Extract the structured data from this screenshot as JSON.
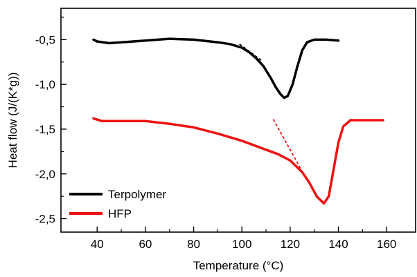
{
  "chart_data": {
    "type": "line",
    "title": "",
    "xlabel": "Temperature (°C)",
    "ylabel": "Heat flow (J/(K*g))",
    "xlim": [
      25,
      172
    ],
    "ylim": [
      -2.65,
      -0.15
    ],
    "x_ticks": [
      40,
      60,
      80,
      100,
      120,
      140,
      160
    ],
    "x_tick_labels": [
      "40",
      "60",
      "80",
      "100",
      "120",
      "140",
      "160"
    ],
    "y_ticks": [
      -0.5,
      -1.0,
      -1.5,
      -2.0,
      -2.5
    ],
    "y_tick_labels": [
      "-0,5",
      "-1,0",
      "-1,5",
      "-2,0",
      "-2,5"
    ],
    "grid": false,
    "legend_position": "bottom-left",
    "series": [
      {
        "name": "Terpolymer",
        "color": "#000000",
        "points": [
          [
            38.5,
            -0.5
          ],
          [
            40,
            -0.52
          ],
          [
            45,
            -0.54
          ],
          [
            50,
            -0.53
          ],
          [
            60,
            -0.51
          ],
          [
            70,
            -0.49
          ],
          [
            80,
            -0.5
          ],
          [
            90,
            -0.53
          ],
          [
            95,
            -0.55
          ],
          [
            100,
            -0.59
          ],
          [
            103,
            -0.64
          ],
          [
            106,
            -0.71
          ],
          [
            109,
            -0.8
          ],
          [
            112,
            -0.93
          ],
          [
            114,
            -1.03
          ],
          [
            116,
            -1.11
          ],
          [
            117.5,
            -1.15
          ],
          [
            119,
            -1.13
          ],
          [
            121,
            -1.0
          ],
          [
            123,
            -0.8
          ],
          [
            125,
            -0.62
          ],
          [
            127,
            -0.53
          ],
          [
            130,
            -0.5
          ],
          [
            135,
            -0.5
          ],
          [
            140,
            -0.51
          ]
        ]
      },
      {
        "name": "HFP",
        "color": "#ee1111",
        "points": [
          [
            38.5,
            -1.38
          ],
          [
            42,
            -1.41
          ],
          [
            50,
            -1.41
          ],
          [
            60,
            -1.41
          ],
          [
            70,
            -1.44
          ],
          [
            80,
            -1.48
          ],
          [
            90,
            -1.55
          ],
          [
            100,
            -1.63
          ],
          [
            110,
            -1.73
          ],
          [
            115,
            -1.78
          ],
          [
            120,
            -1.85
          ],
          [
            125,
            -1.98
          ],
          [
            128,
            -2.1
          ],
          [
            131,
            -2.25
          ],
          [
            134,
            -2.33
          ],
          [
            136,
            -2.25
          ],
          [
            138,
            -1.95
          ],
          [
            140,
            -1.65
          ],
          [
            142,
            -1.47
          ],
          [
            145,
            -1.4
          ],
          [
            150,
            -1.4
          ],
          [
            158.5,
            -1.4
          ]
        ]
      }
    ],
    "tangent_lines": [
      {
        "series": "Terpolymer",
        "color": "#000000",
        "style": "dashed",
        "x": [
          99,
          108
        ],
        "y": [
          -0.55,
          -0.73
        ]
      },
      {
        "series": "HFP",
        "color": "#ee1111",
        "style": "dashed",
        "x": [
          113,
          124.5
        ],
        "y": [
          -1.39,
          -1.95
        ]
      }
    ]
  }
}
